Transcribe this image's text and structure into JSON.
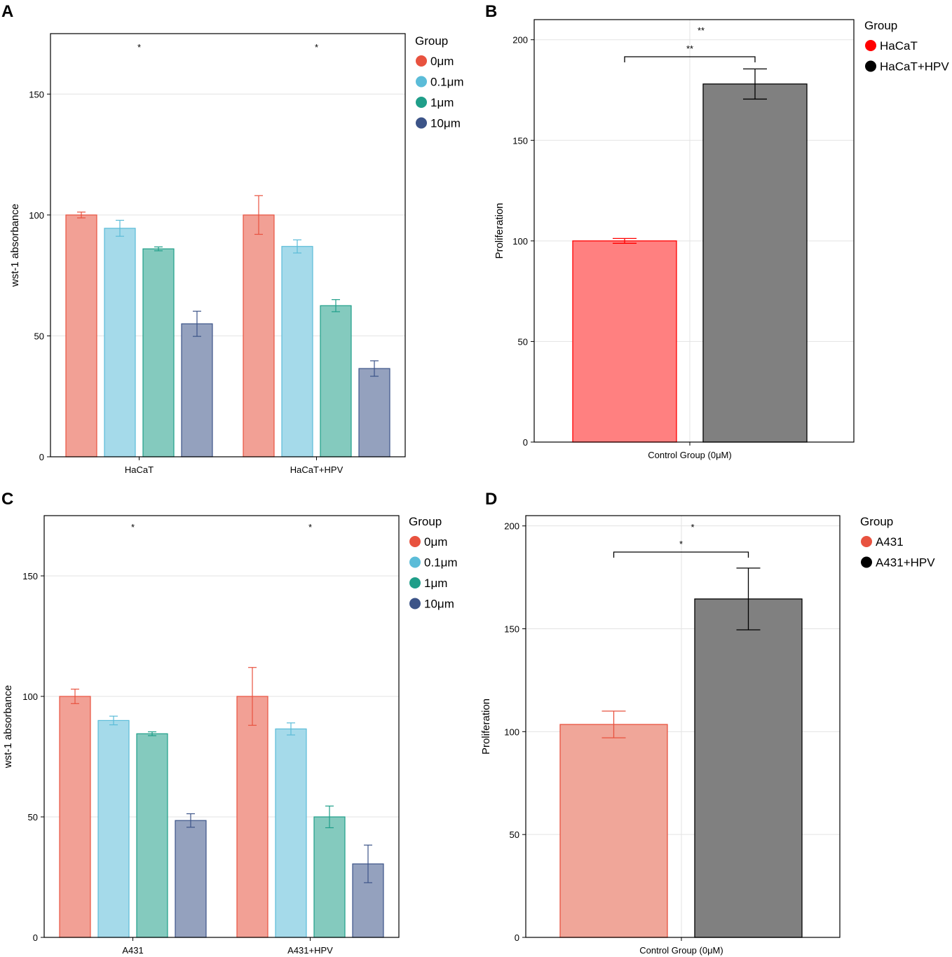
{
  "chart_data": [
    {
      "id": "A",
      "panel_label": "A",
      "type": "bar",
      "ylabel": "wst-1 absorbance",
      "ylim": [
        0,
        175
      ],
      "yticks": [
        0,
        50,
        100,
        150
      ],
      "grid": true,
      "categories": [
        "HaCaT",
        "HaCaT+HPV"
      ],
      "legend": {
        "title": "Group",
        "placement": "right"
      },
      "series": [
        {
          "name": "0μm",
          "color": "#E8523F",
          "values": [
            100,
            100
          ],
          "errors": [
            1.2,
            8
          ]
        },
        {
          "name": "0.1μm",
          "color": "#5BBCD8",
          "values": [
            94.5,
            87
          ],
          "errors": [
            3.3,
            2.7
          ]
        },
        {
          "name": "1μm",
          "color": "#1F9E89",
          "values": [
            86,
            62.5
          ],
          "errors": [
            0.8,
            2.5
          ]
        },
        {
          "name": "10μm",
          "color": "#3C5488",
          "values": [
            55,
            36.5
          ],
          "errors": [
            5.2,
            3.2
          ]
        }
      ],
      "significance": [
        {
          "label": "*",
          "category": 0
        },
        {
          "label": "*",
          "category": 1
        }
      ]
    },
    {
      "id": "B",
      "panel_label": "B",
      "type": "bar",
      "ylabel": "Proliferation",
      "xlabel": "Control Group (0μM)",
      "ylim": [
        0,
        210
      ],
      "yticks": [
        0,
        50,
        100,
        150,
        200
      ],
      "grid": true,
      "legend": {
        "title": "Group",
        "placement": "right"
      },
      "bars": [
        {
          "name": "HaCaT",
          "color": "#FF0000",
          "fill": "#FF8080",
          "legend_color": "#FF0000",
          "value": 100,
          "error": 1.2
        },
        {
          "name": "HaCaT+HPV",
          "color": "#000000",
          "fill": "#808080",
          "legend_color": "#000000",
          "value": 178,
          "error": 7.5
        }
      ],
      "significance": [
        {
          "label": "**"
        }
      ],
      "bracket_label": "**"
    },
    {
      "id": "C",
      "panel_label": "C",
      "type": "bar",
      "ylabel": "wst-1 absorbance",
      "ylim": [
        0,
        175
      ],
      "yticks": [
        0,
        50,
        100,
        150
      ],
      "grid": true,
      "categories": [
        "A431",
        "A431+HPV"
      ],
      "legend": {
        "title": "Group",
        "placement": "right"
      },
      "series": [
        {
          "name": "0μm",
          "color": "#E8523F",
          "values": [
            100,
            100
          ],
          "errors": [
            3,
            12
          ]
        },
        {
          "name": "0.1μm",
          "color": "#5BBCD8",
          "values": [
            90,
            86.5
          ],
          "errors": [
            1.8,
            2.5
          ]
        },
        {
          "name": "1μm",
          "color": "#1F9E89",
          "values": [
            84.5,
            50
          ],
          "errors": [
            0.8,
            4.5
          ]
        },
        {
          "name": "10μm",
          "color": "#3C5488",
          "values": [
            48.5,
            30.5
          ],
          "errors": [
            2.8,
            7.8
          ]
        }
      ],
      "significance": [
        {
          "label": "*",
          "category": 0
        },
        {
          "label": "*",
          "category": 1
        }
      ]
    },
    {
      "id": "D",
      "panel_label": "D",
      "type": "bar",
      "ylabel": "Proliferation",
      "xlabel": "Control Group (0μM)",
      "ylim": [
        0,
        205
      ],
      "yticks": [
        0,
        50,
        100,
        150,
        200
      ],
      "grid": true,
      "legend": {
        "title": "Group",
        "placement": "right"
      },
      "bars": [
        {
          "name": "A431",
          "color": "#E8523F",
          "fill": "#F0A699",
          "legend_color": "#E8523F",
          "value": 103.5,
          "error": 6.5
        },
        {
          "name": "A431+HPV",
          "color": "#000000",
          "fill": "#808080",
          "legend_color": "#000000",
          "value": 164.5,
          "error": 15
        }
      ],
      "significance": [
        {
          "label": "*"
        }
      ],
      "bracket_label": "*"
    }
  ]
}
